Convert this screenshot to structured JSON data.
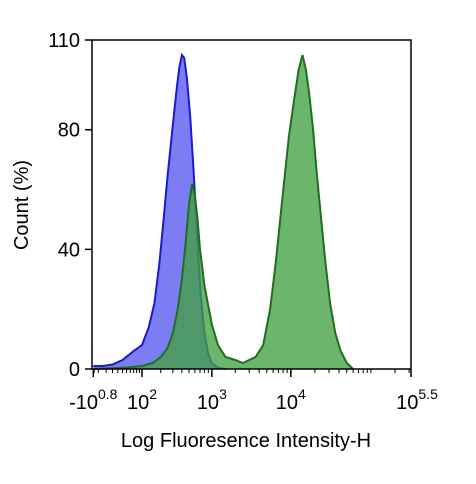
{
  "chart_data": {
    "type": "area",
    "xlabel": "Log Fluoresence Intensity-H",
    "ylabel": "Count  (%)",
    "xscale": "biexponential",
    "ylim": [
      0,
      110
    ],
    "y_ticks": [
      0,
      40,
      80,
      110
    ],
    "x_ticks": [
      {
        "value": -6.3,
        "base": "-10",
        "exp": "0.8"
      },
      {
        "value": 100,
        "base": "10",
        "exp": "2"
      },
      {
        "value": 1000,
        "base": "10",
        "exp": "3"
      },
      {
        "value": 10000,
        "base": "10",
        "exp": "4"
      },
      {
        "value": 316228,
        "base": "10",
        "exp": "5.5"
      }
    ],
    "grid": false,
    "legend": "none",
    "series": [
      {
        "fill": "#6f6ff2",
        "stroke": "#1a1ad0",
        "points": [
          [
            -6.3,
            1
          ],
          [
            5,
            1
          ],
          [
            20,
            1.5
          ],
          [
            40,
            3
          ],
          [
            70,
            6
          ],
          [
            100,
            8
          ],
          [
            130,
            14
          ],
          [
            160,
            22
          ],
          [
            190,
            35
          ],
          [
            220,
            50
          ],
          [
            250,
            64
          ],
          [
            280,
            75
          ],
          [
            310,
            85
          ],
          [
            340,
            94
          ],
          [
            370,
            101
          ],
          [
            400,
            105
          ],
          [
            430,
            104
          ],
          [
            470,
            97
          ],
          [
            520,
            84
          ],
          [
            580,
            65
          ],
          [
            650,
            42
          ],
          [
            720,
            24
          ],
          [
            800,
            12
          ],
          [
            900,
            5
          ],
          [
            1000,
            2
          ],
          [
            1200,
            0.5
          ],
          [
            1500,
            0
          ]
        ]
      },
      {
        "fill": "#42a042",
        "stroke": "#1f6f1f",
        "points": [
          [
            -6.3,
            0
          ],
          [
            50,
            0.5
          ],
          [
            100,
            1
          ],
          [
            150,
            2
          ],
          [
            200,
            4
          ],
          [
            250,
            7
          ],
          [
            300,
            12
          ],
          [
            350,
            20
          ],
          [
            400,
            30
          ],
          [
            450,
            42
          ],
          [
            500,
            55
          ],
          [
            550,
            62
          ],
          [
            600,
            58
          ],
          [
            650,
            50
          ],
          [
            700,
            40
          ],
          [
            800,
            28
          ],
          [
            1000,
            15
          ],
          [
            1200,
            8
          ],
          [
            1500,
            4
          ],
          [
            2000,
            3
          ],
          [
            2500,
            2
          ],
          [
            3000,
            3
          ],
          [
            3600,
            4
          ],
          [
            4500,
            8
          ],
          [
            5500,
            20
          ],
          [
            6500,
            36
          ],
          [
            7500,
            52
          ],
          [
            8500,
            66
          ],
          [
            9500,
            78
          ],
          [
            11000,
            90
          ],
          [
            12500,
            100
          ],
          [
            14000,
            105
          ],
          [
            15500,
            100
          ],
          [
            17000,
            92
          ],
          [
            19000,
            80
          ],
          [
            21000,
            66
          ],
          [
            24000,
            50
          ],
          [
            27000,
            36
          ],
          [
            31000,
            22
          ],
          [
            36000,
            12
          ],
          [
            42000,
            6
          ],
          [
            50000,
            2
          ],
          [
            60000,
            0
          ]
        ]
      }
    ]
  }
}
